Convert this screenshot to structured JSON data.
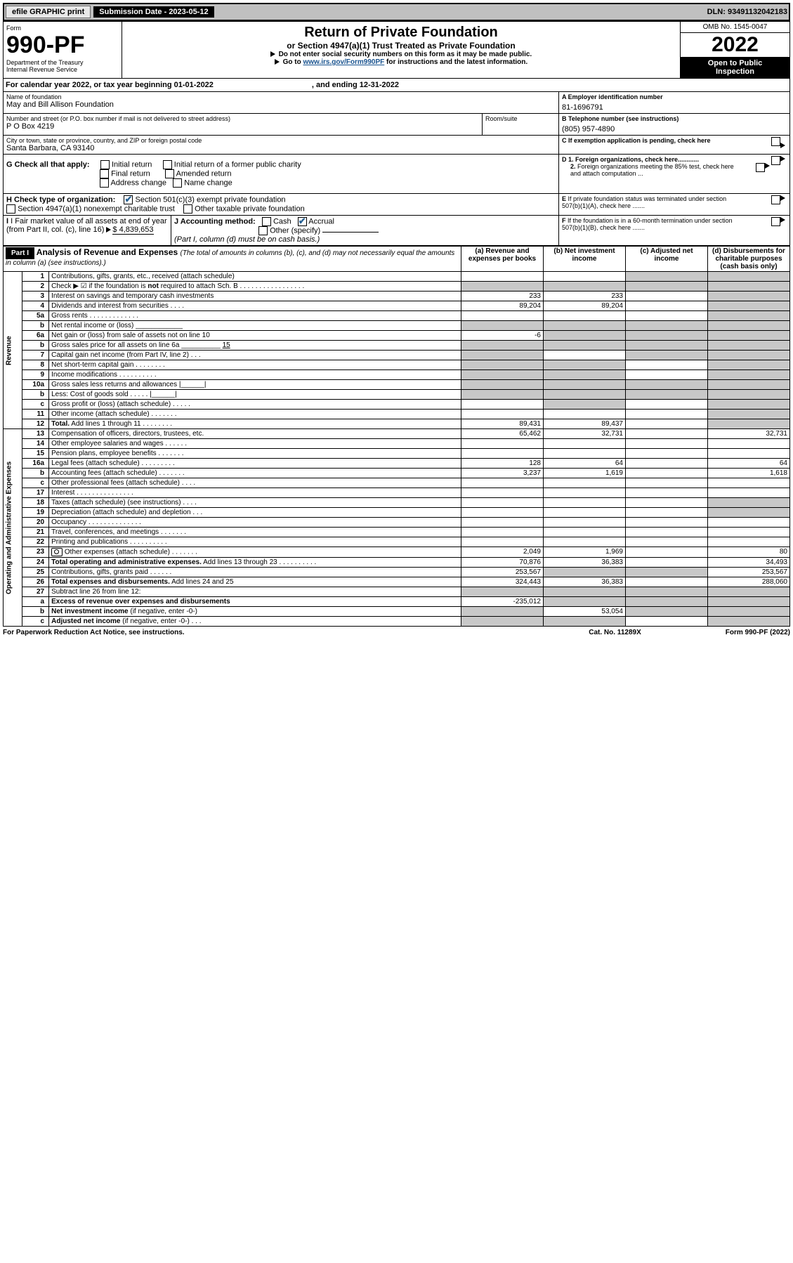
{
  "topbar": {
    "efile": "efile GRAPHIC print",
    "sub_lbl": "Submission Date - 2023-05-12",
    "dln": "DLN: 93491132042183"
  },
  "header": {
    "form": "Form",
    "form_no": "990-PF",
    "dept": "Department of the Treasury",
    "irs": "Internal Revenue Service",
    "title": "Return of Private Foundation",
    "sub_t": "or Section 4947(a)(1) Trust Treated as Private Foundation",
    "i1": "Do not enter social security numbers on this form as it may be made public.",
    "i2": "Go to ",
    "i2link": "www.irs.gov/Form990PF",
    "i2b": " for instructions and the latest information.",
    "omb": "OMB No. 1545-0047",
    "year": "2022",
    "o2p1": "Open to Public",
    "o2p2": "Inspection"
  },
  "cy": {
    "a": "For calendar year 2022, or tax year beginning 01-01-2022",
    "b": ", and ending 12-31-2022"
  },
  "id": {
    "name_lbl": "Name of foundation",
    "name": "May and Bill Allison Foundation",
    "addr_lbl": "Number and street (or P.O. box number if mail is not delivered to street address)",
    "addr": "P O Box 4219",
    "room_lbl": "Room/suite",
    "city_lbl": "City or town, state or province, country, and ZIP or foreign postal code",
    "city": "Santa Barbara, CA  93140",
    "a_lbl": "A Employer identification number",
    "ein": "81-1696791",
    "b_lbl": "B Telephone number (see instructions)",
    "tel": "(805) 957-4890",
    "c_lbl": "C If exemption application is pending, check here",
    "d1": "D 1. Foreign organizations, check here............",
    "d2": "2. Foreign organizations meeting the 85% test, check here and attach computation ...",
    "e_lbl": "E  If private foundation status was terminated under section 507(b)(1)(A), check here .......",
    "f_lbl": "F  If the foundation is in a 60-month termination under section 507(b)(1)(B), check here .......",
    "g_lbl": "G Check all that apply:",
    "g_opts": [
      "Initial return",
      "Initial return of a former public charity",
      "Final return",
      "Amended return",
      "Address change",
      "Name change"
    ],
    "h_lbl": "H Check type of organization:",
    "h1": "Section 501(c)(3) exempt private foundation",
    "h2": "Section 4947(a)(1) nonexempt charitable trust",
    "h3": "Other taxable private foundation",
    "i_lbl": "I Fair market value of all assets at end of year (from Part II, col. (c), line 16) ",
    "i_val": "$  4,839,653",
    "j_lbl": "J Accounting method:",
    "j1": "Cash",
    "j2": "Accrual",
    "j3": "Other (specify)",
    "j_note": "(Part I, column (d) must be on cash basis.)"
  },
  "part1": {
    "hdr": "Part I",
    "title": "Analysis of Revenue and Expenses ",
    "title_note": "(The total of amounts in columns (b), (c), and (d) may not necessarily equal the amounts in column (a) (see instructions).)",
    "cols": {
      "a": "(a)   Revenue and expenses per books",
      "b": "(b)   Net investment income",
      "c": "(c)   Adjusted net income",
      "d": "(d)   Disbursements for charitable purposes (cash basis only)"
    },
    "rev_lbl": "Revenue",
    "oae_lbl": "Operating and Administrative Expenses",
    "lines": [
      {
        "n": "1",
        "t": "Contributions, gifts, grants, etc., received (attach schedule)",
        "a": "",
        "b": "",
        "cGray": true,
        "dGray": true
      },
      {
        "n": "2",
        "t": "Check ▶ ☑ if the foundation is <b>not</b> required to attach Sch. B  .  .  .  .  .  .  .  .  .  .  .  .  .  .  .  .  .",
        "allGray": true
      },
      {
        "n": "3",
        "t": "Interest on savings and temporary cash investments",
        "a": "233",
        "b": "233",
        "dGray": true
      },
      {
        "n": "4",
        "t": "Dividends and interest from securities   .   .   .   .",
        "a": "89,204",
        "b": "89,204",
        "dGray": true
      },
      {
        "n": "5a",
        "t": "Gross rents   .   .   .   .   .   .   .   .   .   .   .   .   .",
        "dGray": true
      },
      {
        "n": "b",
        "t": "Net rental income or (loss)  ____________",
        "allGray": true
      },
      {
        "n": "6a",
        "t": "Net gain or (loss) from sale of assets not on line 10",
        "a": "-6",
        "bGray": true,
        "cGray": true,
        "dGray": true
      },
      {
        "n": "b",
        "t": "Gross sales price for all assets on line 6a __________ <u>15</u>",
        "allGray": true
      },
      {
        "n": "7",
        "t": "Capital gain net income (from Part IV, line 2)   .   .   .",
        "aGray": true,
        "cGray": true,
        "dGray": true
      },
      {
        "n": "8",
        "t": "Net short-term capital gain   .   .   .   .   .   .   .   .",
        "aGray": true,
        "bGray": true,
        "dGray": true
      },
      {
        "n": "9",
        "t": "Income modifications   .   .   .   .   .   .   .   .   .   .",
        "aGray": true,
        "bGray": true,
        "dGray": true
      },
      {
        "n": "10a",
        "t": "Gross sales less returns and allowances  |______|",
        "allGray": true
      },
      {
        "n": "b",
        "t": "Less: Cost of goods sold   .   .   .   .   .  |______|",
        "allGray": true
      },
      {
        "n": "c",
        "t": "Gross profit or (loss) (attach schedule)   .   .   .   .   .",
        "bGray": true,
        "dGray": true
      },
      {
        "n": "11",
        "t": "Other income (attach schedule)   .   .   .   .   .   .   .",
        "dGray": true
      },
      {
        "n": "12",
        "t": "<b>Total.</b> Add lines 1 through 11   .   .   .   .   .   .   .   .",
        "a": "89,431",
        "b": "89,437",
        "dGray": true
      }
    ],
    "exp": [
      {
        "n": "13",
        "t": "Compensation of officers, directors, trustees, etc.",
        "a": "65,462",
        "b": "32,731",
        "d": "32,731"
      },
      {
        "n": "14",
        "t": "Other employee salaries and wages   .   .   .   .   .   ."
      },
      {
        "n": "15",
        "t": "Pension plans, employee benefits   .   .   .   .   .   .   ."
      },
      {
        "n": "16a",
        "t": "Legal fees (attach schedule)  .   .   .   .   .   .   .   .   .",
        "a": "128",
        "b": "64",
        "d": "64"
      },
      {
        "n": "b",
        "t": "Accounting fees (attach schedule)  .   .   .   .   .   .   .",
        "a": "3,237",
        "b": "1,619",
        "d": "1,618"
      },
      {
        "n": "c",
        "t": "Other professional fees (attach schedule)   .   .   .   ."
      },
      {
        "n": "17",
        "t": "Interest  .   .   .   .   .   .   .   .   .   .   .   .   .   .   ."
      },
      {
        "n": "18",
        "t": "Taxes (attach schedule) (see instructions)   .   .   .   .",
        "dGray": true
      },
      {
        "n": "19",
        "t": "Depreciation (attach schedule) and depletion   .   .   .",
        "dGray": true
      },
      {
        "n": "20",
        "t": "Occupancy  .   .   .   .   .   .   .   .   .   .   .   .   .   ."
      },
      {
        "n": "21",
        "t": "Travel, conferences, and meetings  .   .   .   .   .   .   ."
      },
      {
        "n": "22",
        "t": "Printing and publications  .   .   .   .   .   .   .   .   .   ."
      },
      {
        "n": "23",
        "t": "Other expenses (attach schedule)  .   .   .   .   .   .   .",
        "cam": true,
        "a": "2,049",
        "b": "1,969",
        "d": "80"
      },
      {
        "n": "24",
        "t": "<b>Total operating and administrative expenses.</b> Add lines 13 through 23   .   .   .   .   .   .   .   .   .   .",
        "a": "70,876",
        "b": "36,383",
        "d": "34,493"
      },
      {
        "n": "25",
        "t": "Contributions, gifts, grants paid   .   .   .   .   .   .",
        "a": "253,567",
        "bGray": true,
        "cGray": true,
        "d": "253,567"
      },
      {
        "n": "26",
        "t": "<b>Total expenses and disbursements.</b> Add lines 24 and 25",
        "a": "324,443",
        "b": "36,383",
        "d": "288,060"
      },
      {
        "n": "27",
        "t": "Subtract line 26 from line 12:",
        "allGray": true
      },
      {
        "n": "a",
        "t": "<b>Excess of revenue over expenses and disbursements</b>",
        "a": "-235,012",
        "bGray": true,
        "cGray": true,
        "dGray": true
      },
      {
        "n": "b",
        "t": "<b>Net investment income</b> (if negative, enter -0-)",
        "aGray": true,
        "b": "53,054",
        "cGray": true,
        "dGray": true
      },
      {
        "n": "c",
        "t": "<b>Adjusted net income</b> (if negative, enter -0-)   .   .   .",
        "aGray": true,
        "bGray": true,
        "dGray": true
      }
    ]
  },
  "footer": {
    "l": "For Paperwork Reduction Act Notice, see instructions.",
    "c": "Cat. No. 11289X",
    "r": "Form 990-PF (2022)"
  }
}
